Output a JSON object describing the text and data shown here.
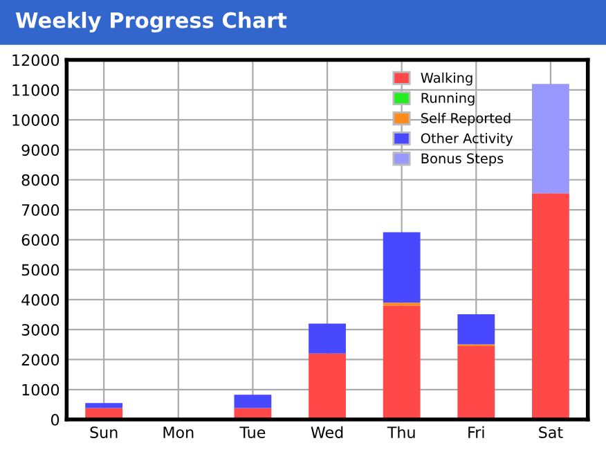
{
  "chart_data": {
    "type": "bar",
    "title": "Weekly Progress Chart",
    "categories": [
      "Sun",
      "Mon",
      "Tue",
      "Wed",
      "Thu",
      "Fri",
      "Sat"
    ],
    "stacked": true,
    "series": [
      {
        "name": "Walking",
        "color": "#ff4848",
        "values": [
          380,
          0,
          380,
          2200,
          3800,
          2450,
          7550
        ]
      },
      {
        "name": "Running",
        "color": "#22ee22",
        "values": [
          0,
          0,
          0,
          0,
          0,
          0,
          0
        ]
      },
      {
        "name": "Self Reported",
        "color": "#ff8c1a",
        "values": [
          0,
          0,
          0,
          0,
          100,
          60,
          0
        ]
      },
      {
        "name": "Other Activity",
        "color": "#4848ff",
        "values": [
          170,
          0,
          450,
          1000,
          2350,
          1000,
          0
        ]
      },
      {
        "name": "Bonus Steps",
        "color": "#9898ff",
        "values": [
          0,
          0,
          0,
          0,
          0,
          0,
          3650
        ]
      }
    ],
    "ylim": [
      0,
      12000
    ],
    "yticks": [
      0,
      1000,
      2000,
      3000,
      4000,
      5000,
      6000,
      7000,
      8000,
      9000,
      10000,
      11000,
      12000
    ],
    "grid": true,
    "legend": "top right"
  }
}
